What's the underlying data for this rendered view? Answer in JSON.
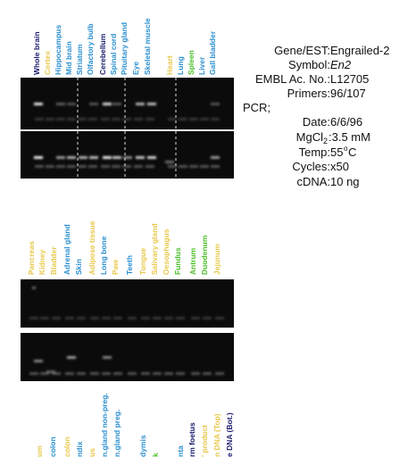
{
  "top_panel": {
    "lanes": [
      {
        "label": "Whole brain",
        "color": "#1a1a6e"
      },
      {
        "label": "Cortex",
        "color": "#e8c84a"
      },
      {
        "label": "Hippocampus",
        "color": "#2a8fd0"
      },
      {
        "label": "Mid brain",
        "color": "#2a8fd0"
      },
      {
        "label": "Striatum",
        "color": "#2a8fd0"
      },
      {
        "label": "Olfactory bulb",
        "color": "#2a8fd0"
      },
      {
        "label": "Cerebellum",
        "color": "#1a1a6e"
      },
      {
        "label": "Spinal cord",
        "color": "#2a8fd0"
      },
      {
        "label": "Pituitary gland",
        "color": "#2a8fd0"
      },
      {
        "label": "Eye",
        "color": "#2a8fd0"
      },
      {
        "label": "Skeletal muscle",
        "color": "#2a8fd0"
      },
      {
        "label": "Heart",
        "color": "#e8c84a"
      },
      {
        "label": "Lung",
        "color": "#2a8fd0"
      },
      {
        "label": "Spleen",
        "color": "#4cc02a"
      },
      {
        "label": "Liver",
        "color": "#2a8fd0"
      },
      {
        "label": "Gall bladder",
        "color": "#2a8fd0"
      }
    ]
  },
  "info": {
    "gene_label": "Gene/EST:",
    "gene": "Engrailed-2",
    "symbol_label": "Symbol:",
    "symbol": "En2",
    "embl_label": "EMBL Ac. No.:",
    "embl": "L12705",
    "primers_label": "Primers:",
    "primers": "96/107",
    "pcr": "PCR;",
    "date_label": "Date:",
    "date": "6/6/96",
    "mgcl_label": "MgCl",
    "mgcl_sub": "2",
    "mgcl": ":3.5 mM",
    "temp_label": "Temp:",
    "temp": "55",
    "temp_sup": "o",
    "temp_unit": "C",
    "cycles_label": "Cycles:",
    "cycles": "x50",
    "cdna_label": "cDNA:",
    "cdna": "10 ng"
  },
  "bottom_panel": {
    "lanes": [
      {
        "label": "Pancreas",
        "color": "#e8c84a"
      },
      {
        "label": "Kidney",
        "color": "#e8c84a"
      },
      {
        "label": "Bladder",
        "color": "#e8c84a"
      },
      {
        "label": "Adrenal gland",
        "color": "#2a8fd0"
      },
      {
        "label": "Skin",
        "color": "#2a8fd0"
      },
      {
        "label": "Adipose tissue",
        "color": "#e8c84a"
      },
      {
        "label": "Long bone",
        "color": "#2a8fd0"
      },
      {
        "label": "Paw",
        "color": "#e8c84a"
      },
      {
        "label": "Teeth",
        "color": "#2a8fd0"
      },
      {
        "label": "Tongue",
        "color": "#e8c84a"
      },
      {
        "label": "Salivary gland",
        "color": "#e8c84a"
      },
      {
        "label": "Oesophagus",
        "color": "#e8c84a"
      },
      {
        "label": "Fundus",
        "color": "#4cc02a"
      },
      {
        "label": "Antrum",
        "color": "#4cc02a"
      },
      {
        "label": "Duodenum",
        "color": "#4cc02a"
      },
      {
        "label": "Jejunum",
        "color": "#e8c84a"
      }
    ]
  },
  "third_panel": {
    "lanes": [
      {
        "label": "um",
        "color": "#e8c84a"
      },
      {
        "label": "colon",
        "color": "#2a8fd0"
      },
      {
        "label": "colon",
        "color": "#e8c84a"
      },
      {
        "label": "ndix",
        "color": "#2a8fd0"
      },
      {
        "label": "us",
        "color": "#e8c84a"
      },
      {
        "label": "n.gland non-preg.",
        "color": "#2a8fd0"
      },
      {
        "label": "n.gland preg.",
        "color": "#2a8fd0"
      },
      {
        "label": "dymis",
        "color": "#2a8fd0"
      },
      {
        "label": "k",
        "color": "#4cc02a"
      },
      {
        "label": "nta",
        "color": "#2a8fd0"
      },
      {
        "label": "rm foetus",
        "color": "#1a1a6e"
      },
      {
        "label": "' product",
        "color": "#e8c84a"
      },
      {
        "label": "n DNA (Top)",
        "color": "#e8c84a"
      },
      {
        "label": "e DNA (Bot.)",
        "color": "#1a1a6e"
      }
    ]
  }
}
